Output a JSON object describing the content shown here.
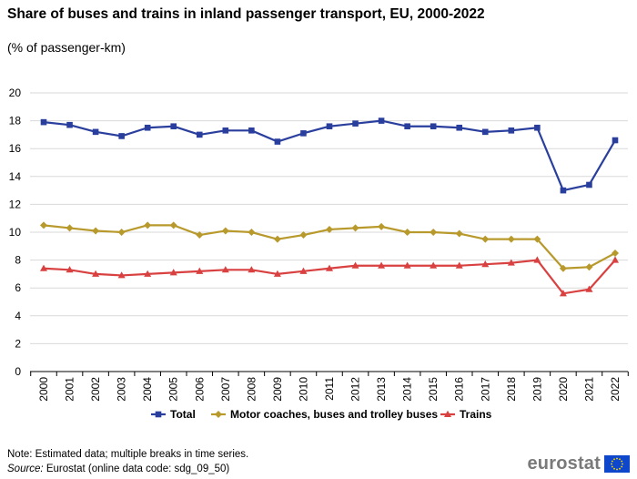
{
  "header": {
    "title": "Share of buses and trains in inland passenger transport, EU, 2000-2022",
    "subtitle": "(% of passenger-km)"
  },
  "footer": {
    "note": "Note: Estimated data; multiple breaks in time series.",
    "source_label": "Source:",
    "source_text": " Eurostat (online data code: sdg_09_50)",
    "logo_text": "eurostat"
  },
  "colors": {
    "total": "#2a3f9d",
    "coaches": "#b8992c",
    "trains": "#d94141",
    "grid": "#d9d9d9",
    "flag_blue": "#0e47cb",
    "flag_star": "#ffde00"
  },
  "chart_data": {
    "type": "line",
    "title": "Share of buses and trains in inland passenger transport, EU, 2000-2022",
    "ylabel": "% of passenger-km",
    "xlabel": "",
    "ylim": [
      0,
      20
    ],
    "yticks": [
      0,
      2,
      4,
      6,
      8,
      10,
      12,
      14,
      16,
      18,
      20
    ],
    "grid": true,
    "legend_position": "bottom",
    "categories": [
      "2000",
      "2001",
      "2002",
      "2003",
      "2004",
      "2005",
      "2006",
      "2007",
      "2008",
      "2009",
      "2010",
      "2011",
      "2012",
      "2013",
      "2014",
      "2015",
      "2016",
      "2017",
      "2018",
      "2019",
      "2020",
      "2021",
      "2022"
    ],
    "series": [
      {
        "key": "total",
        "name": "Total",
        "marker": "square",
        "values": [
          17.9,
          17.7,
          17.2,
          16.9,
          17.5,
          17.6,
          17.0,
          17.3,
          17.3,
          16.5,
          17.1,
          17.6,
          17.8,
          18.0,
          17.6,
          17.6,
          17.5,
          17.2,
          17.3,
          17.5,
          13.0,
          13.4,
          16.6
        ]
      },
      {
        "key": "coaches",
        "name": "Motor coaches, buses and trolley buses",
        "marker": "diamond",
        "values": [
          10.5,
          10.3,
          10.1,
          10.0,
          10.5,
          10.5,
          9.8,
          10.1,
          10.0,
          9.5,
          9.8,
          10.2,
          10.3,
          10.4,
          10.0,
          10.0,
          9.9,
          9.5,
          9.5,
          9.5,
          7.4,
          7.5,
          8.5
        ]
      },
      {
        "key": "trains",
        "name": "Trains",
        "marker": "triangle",
        "values": [
          7.4,
          7.3,
          7.0,
          6.9,
          7.0,
          7.1,
          7.2,
          7.3,
          7.3,
          7.0,
          7.2,
          7.4,
          7.6,
          7.6,
          7.6,
          7.6,
          7.6,
          7.7,
          7.8,
          8.0,
          5.6,
          5.9,
          8.0
        ]
      }
    ]
  }
}
